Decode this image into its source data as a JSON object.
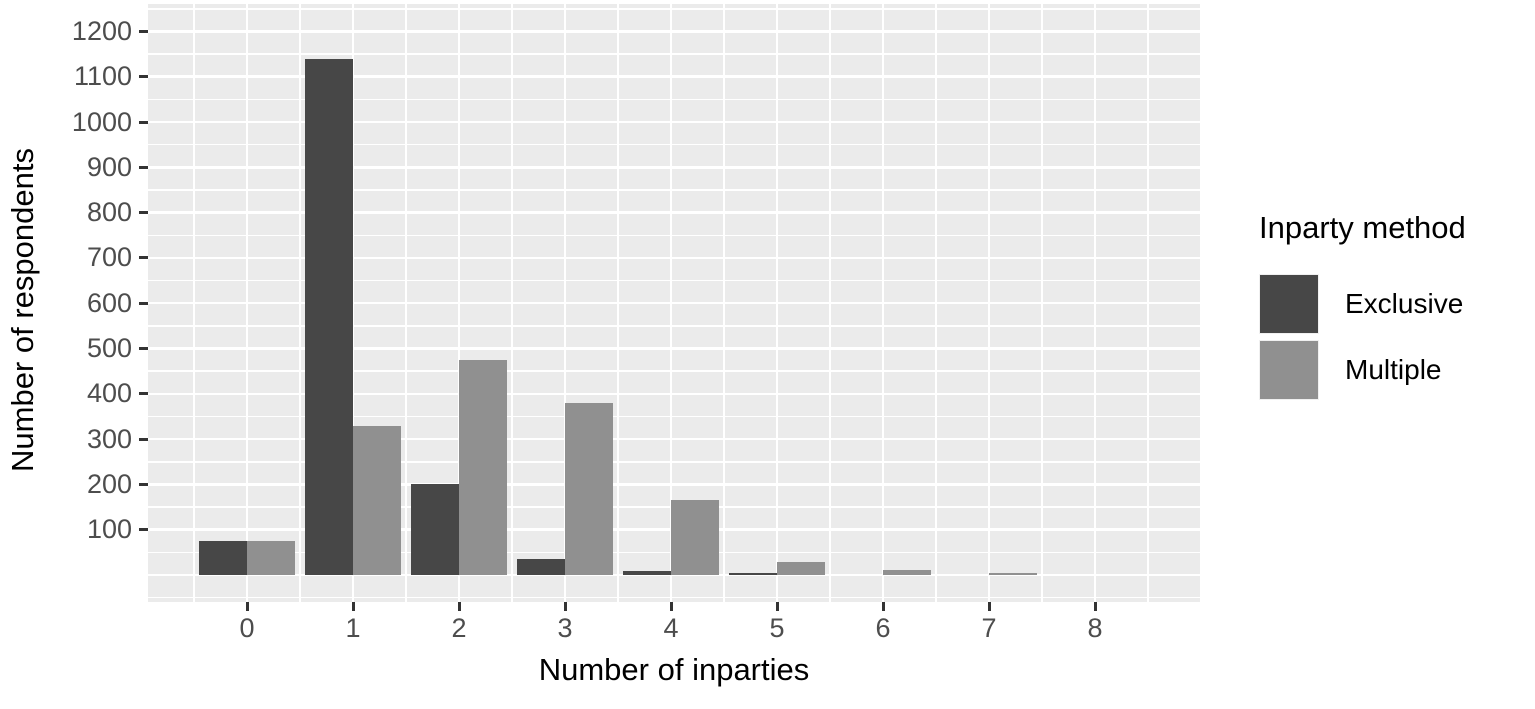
{
  "chart_data": {
    "type": "bar",
    "title": "",
    "xlabel": "Number of inparties",
    "ylabel": "Number of respondents",
    "categories": [
      "0",
      "1",
      "2",
      "3",
      "4",
      "5",
      "6",
      "7",
      "8"
    ],
    "series": [
      {
        "name": "Exclusive",
        "color": "#474747",
        "values": [
          75,
          1140,
          200,
          35,
          8,
          5,
          0,
          0,
          0
        ]
      },
      {
        "name": "Multiple",
        "color": "#909090",
        "values": [
          75,
          330,
          475,
          380,
          165,
          28,
          10,
          4,
          0
        ]
      }
    ],
    "ylim": [
      0,
      1250
    ],
    "yticks": [
      100,
      200,
      300,
      400,
      500,
      600,
      700,
      800,
      900,
      1000,
      1100,
      1200
    ],
    "grid": "major+minor, white on gray panel",
    "legend_position": "right",
    "legend": {
      "title": "Inparty method",
      "entries": [
        "Exclusive",
        "Multiple"
      ]
    },
    "colors": {
      "panel_bg": "#ebebeb",
      "grid": "#ffffff",
      "tick_text": "#4d4d4d",
      "tick_mark": "#333333",
      "title_text": "#000000"
    }
  }
}
